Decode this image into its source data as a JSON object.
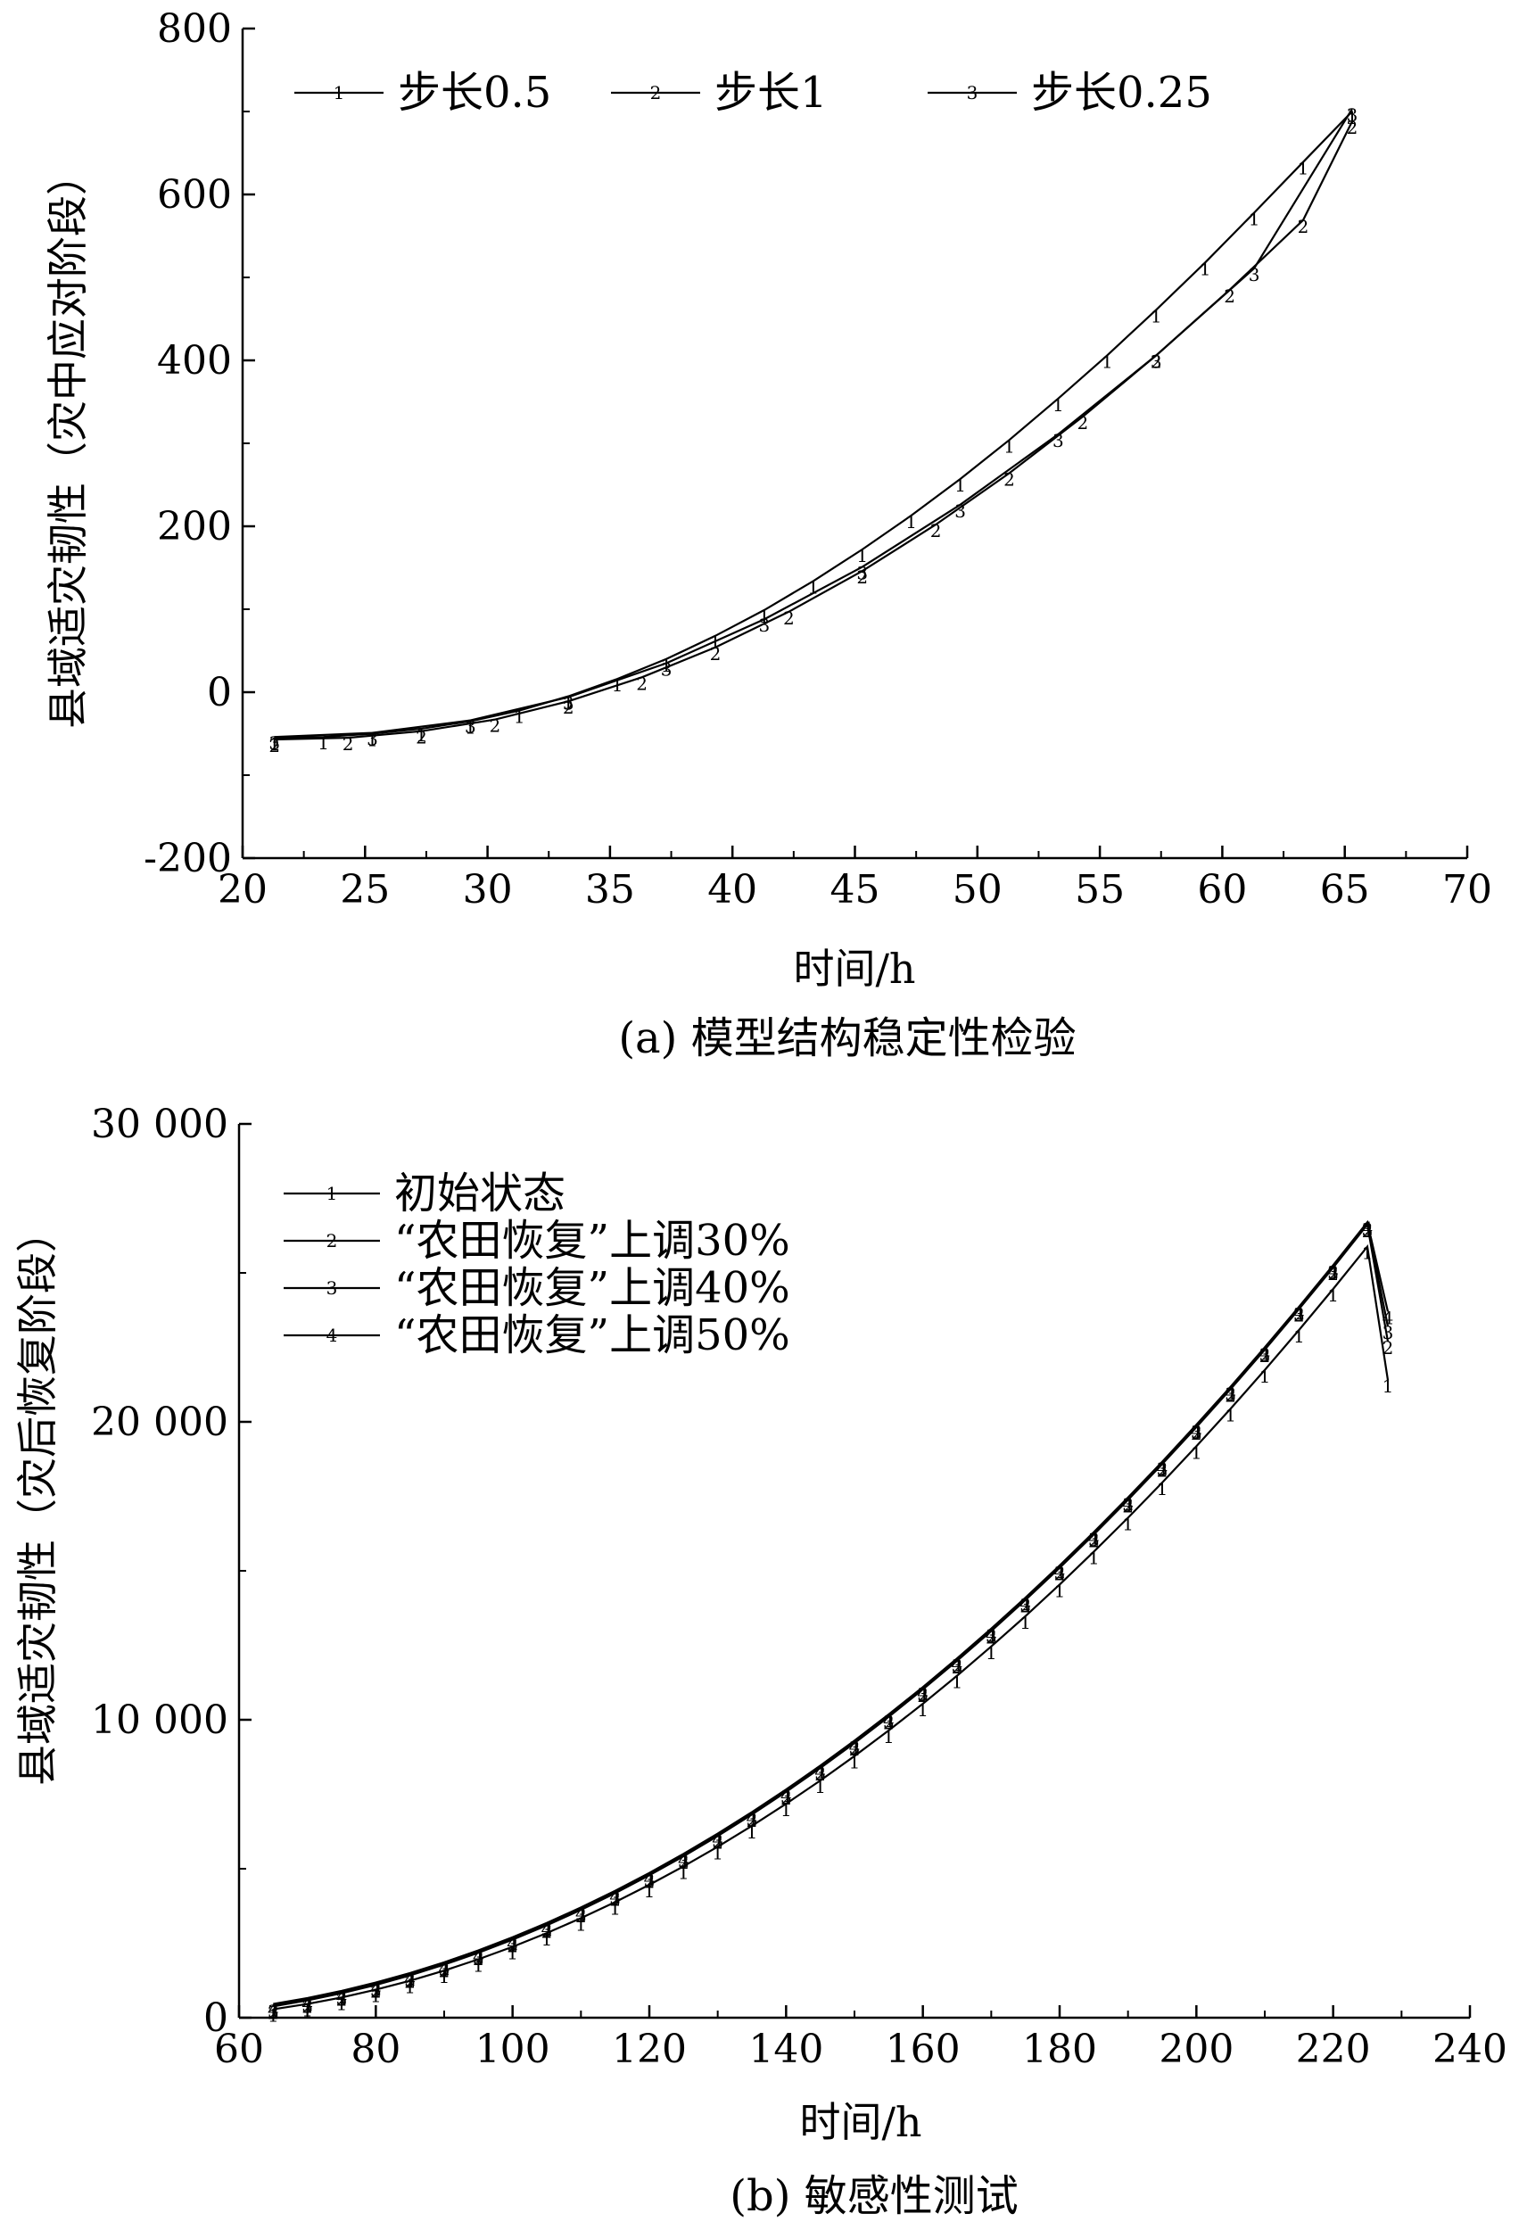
{
  "chart_data": [
    {
      "type": "line",
      "caption": "(a) 模型结构稳定性检验",
      "xlabel": "时间/h",
      "ylabel": "县域适灾韧性（灾中应对阶段）",
      "xlim": [
        20,
        70
      ],
      "ylim": [
        -200,
        800
      ],
      "x_ticks": [
        "20",
        "25",
        "30",
        "35",
        "40",
        "45",
        "50",
        "55",
        "60",
        "65",
        "70"
      ],
      "y_ticks": [
        "-200",
        "0",
        "200",
        "400",
        "600",
        "800"
      ],
      "legend_position": "top-left",
      "grid": false,
      "series": [
        {
          "name": "步长0.5",
          "marker": "1",
          "x": [
            21.3,
            23.3,
            25.3,
            27.3,
            29.3,
            31.3,
            33.3,
            35.3,
            37.3,
            39.3,
            41.3,
            43.3,
            45.3,
            47.3,
            49.3,
            51.3,
            53.3,
            55.3,
            57.3,
            59.3,
            61.3,
            63.3,
            65.3
          ],
          "y": [
            -55,
            -54,
            -50,
            -44,
            -35,
            -22,
            -5,
            16,
            40,
            68,
            99,
            134,
            172,
            213,
            257,
            304,
            354,
            406,
            461,
            518,
            578,
            639,
            700
          ]
        },
        {
          "name": "步长1",
          "marker": "2",
          "x": [
            21.3,
            24.3,
            27.3,
            30.3,
            33.3,
            36.3,
            39.3,
            42.3,
            45.3,
            48.3,
            51.3,
            54.3,
            57.3,
            60.3,
            63.3,
            65.3
          ],
          "y": [
            -57,
            -55,
            -47,
            -33,
            -11,
            18,
            54,
            97,
            146,
            202,
            264,
            332,
            406,
            485,
            569,
            688
          ]
        },
        {
          "name": "步长0.25",
          "marker": "3",
          "x": [
            21.3,
            25.3,
            29.3,
            33.3,
            37.3,
            41.3,
            45.3,
            49.3,
            53.3,
            57.3,
            61.3,
            65.3
          ],
          "y": [
            -54,
            -49,
            -34,
            -6,
            35,
            88,
            151,
            226,
            311,
            406,
            511,
            703
          ]
        }
      ]
    },
    {
      "type": "line",
      "caption": "(b) 敏感性测试",
      "xlabel": "时间/h",
      "ylabel": "县域适灾韧性（灾后恢复阶段）",
      "xlim": [
        60,
        240
      ],
      "ylim": [
        0,
        30000
      ],
      "x_ticks": [
        "60",
        "80",
        "100",
        "120",
        "140",
        "160",
        "180",
        "200",
        "220",
        "240"
      ],
      "y_ticks": [
        "0",
        "10 000",
        "20 000",
        "30 000"
      ],
      "legend_position": "top-left",
      "grid": false,
      "x": [
        65,
        70,
        75,
        80,
        85,
        90,
        95,
        100,
        105,
        110,
        115,
        120,
        125,
        130,
        135,
        140,
        145,
        150,
        155,
        160,
        165,
        170,
        175,
        180,
        185,
        190,
        195,
        200,
        205,
        210,
        215,
        220,
        225,
        228
      ],
      "series": [
        {
          "name": "初始状态",
          "marker": "1",
          "y": [
            280,
            460,
            680,
            940,
            1240,
            1580,
            1960,
            2380,
            2840,
            3340,
            3880,
            4460,
            5080,
            5740,
            6440,
            7180,
            7960,
            8780,
            9640,
            10540,
            11480,
            12460,
            13480,
            14540,
            15640,
            16780,
            17960,
            19180,
            20440,
            21740,
            23080,
            24460,
            25880,
            21400
          ]
        },
        {
          "name": "“农田恢复”上调30%",
          "marker": "2",
          "y": [
            380,
            580,
            820,
            1100,
            1420,
            1780,
            2180,
            2620,
            3100,
            3620,
            4180,
            4780,
            5420,
            6100,
            6820,
            7580,
            8380,
            9220,
            10100,
            11020,
            11980,
            12980,
            14020,
            15100,
            16220,
            17380,
            18580,
            19820,
            21100,
            22420,
            23780,
            25180,
            26620,
            22700
          ]
        },
        {
          "name": "“农田恢复”上调40%",
          "marker": "3",
          "y": [
            420,
            620,
            860,
            1140,
            1460,
            1820,
            2220,
            2660,
            3140,
            3660,
            4220,
            4820,
            5460,
            6140,
            6860,
            7620,
            8420,
            9260,
            10140,
            11060,
            12020,
            13020,
            14060,
            15140,
            16260,
            17420,
            18620,
            19860,
            21140,
            22460,
            23820,
            25220,
            26660,
            23200
          ]
        },
        {
          "name": "“农田恢复”上调50%",
          "marker": "4",
          "y": [
            460,
            660,
            900,
            1180,
            1500,
            1860,
            2260,
            2700,
            3180,
            3700,
            4260,
            4860,
            5500,
            6180,
            6900,
            7660,
            8460,
            9300,
            10180,
            11100,
            12060,
            13060,
            14100,
            15180,
            16300,
            17460,
            18660,
            19900,
            21180,
            22500,
            23860,
            25260,
            26700,
            23700
          ]
        }
      ]
    }
  ]
}
